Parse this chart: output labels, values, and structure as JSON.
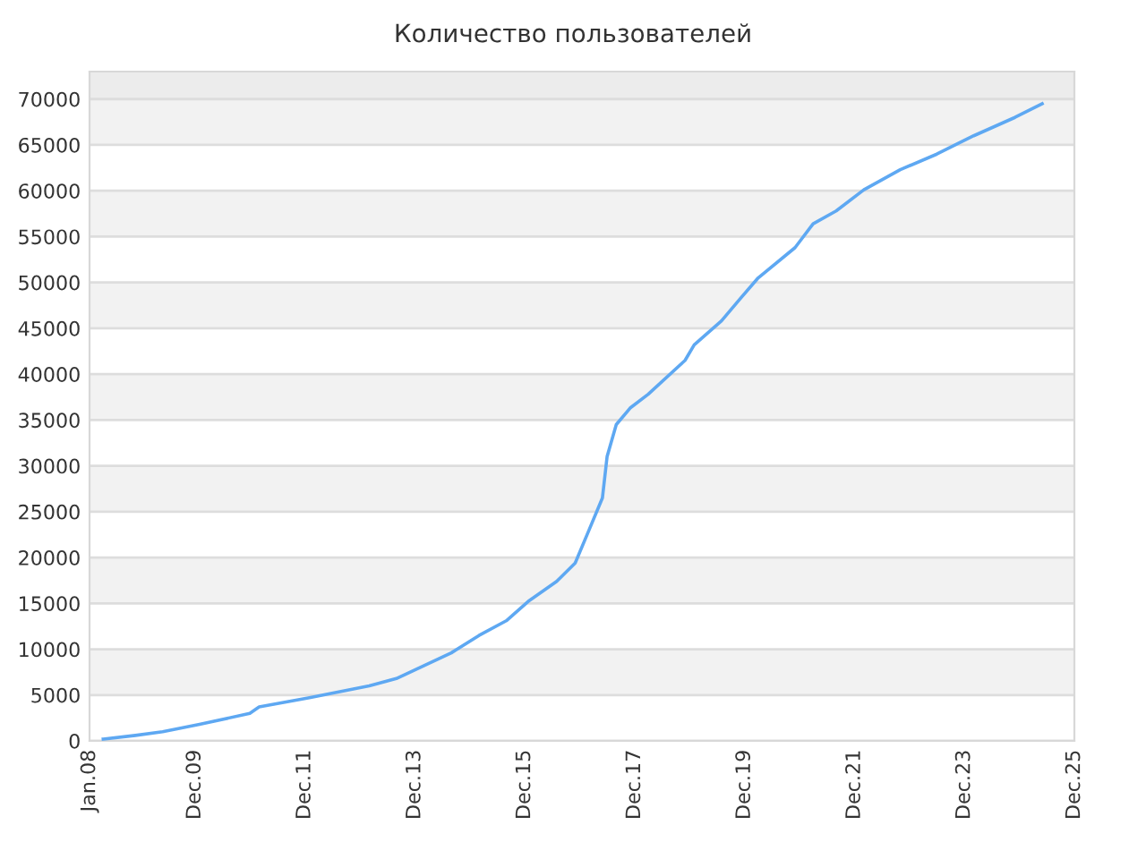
{
  "chart_data": {
    "type": "line",
    "title": "Количество пользователей",
    "x": [
      "2008-04",
      "2008-11",
      "2009-05",
      "2010-01",
      "2010-12",
      "2011-02",
      "2012-01",
      "2013-02",
      "2013-08",
      "2014-02",
      "2014-08",
      "2015-02",
      "2015-08",
      "2016-01",
      "2016-07",
      "2016-11",
      "2017-02",
      "2017-05",
      "2017-06",
      "2017-08",
      "2017-11",
      "2018-03",
      "2018-11",
      "2019-01",
      "2019-07",
      "2019-11",
      "2020-03",
      "2020-11",
      "2021-03",
      "2021-08",
      "2022-02",
      "2022-10",
      "2023-06",
      "2024-02",
      "2024-11",
      "2025-05"
    ],
    "series": [
      {
        "color": "#5ea8f2",
        "values": [
          200,
          600,
          1000,
          1800,
          3000,
          3700,
          4700,
          6000,
          6800,
          8200,
          9600,
          11500,
          13100,
          15300,
          17400,
          19400,
          23000,
          26500,
          31000,
          34500,
          36300,
          37800,
          41500,
          43200,
          45800,
          48200,
          50500,
          53800,
          56400,
          57800,
          60100,
          62300,
          64000,
          66000,
          68000,
          69500
        ]
      }
    ],
    "xlim": [
      "2008-01",
      "2025-12"
    ],
    "xticks": [
      {
        "value": "2008-01",
        "label": "Jan.08"
      },
      {
        "value": "2009-12",
        "label": "Dec.09"
      },
      {
        "value": "2011-12",
        "label": "Dec.11"
      },
      {
        "value": "2013-12",
        "label": "Dec.13"
      },
      {
        "value": "2015-12",
        "label": "Dec.15"
      },
      {
        "value": "2017-12",
        "label": "Dec.17"
      },
      {
        "value": "2019-12",
        "label": "Dec.19"
      },
      {
        "value": "2021-12",
        "label": "Dec.21"
      },
      {
        "value": "2023-12",
        "label": "Dec.23"
      },
      {
        "value": "2025-12",
        "label": "Dec.25"
      }
    ],
    "ylim": [
      0,
      73000
    ],
    "yticks": [
      0,
      5000,
      10000,
      15000,
      20000,
      25000,
      30000,
      35000,
      40000,
      45000,
      50000,
      55000,
      60000,
      65000,
      70000
    ],
    "bands": [
      {
        "axis": "y",
        "from": 5000,
        "to": 10000,
        "color": "#f2f2f2"
      },
      {
        "axis": "y",
        "from": 15000,
        "to": 20000,
        "color": "#f2f2f2"
      },
      {
        "axis": "y",
        "from": 25000,
        "to": 30000,
        "color": "#f2f2f2"
      },
      {
        "axis": "y",
        "from": 35000,
        "to": 40000,
        "color": "#f2f2f2"
      },
      {
        "axis": "y",
        "from": 45000,
        "to": 50000,
        "color": "#f2f2f2"
      },
      {
        "axis": "y",
        "from": 55000,
        "to": 60000,
        "color": "#f2f2f2"
      },
      {
        "axis": "y",
        "from": 65000,
        "to": 70000,
        "color": "#f2f2f2"
      },
      {
        "axis": "y",
        "from": 70000,
        "to": 73000,
        "color": "#ececec"
      }
    ],
    "grid": "y",
    "legend": false,
    "marker": "none",
    "line_style": "solid"
  }
}
